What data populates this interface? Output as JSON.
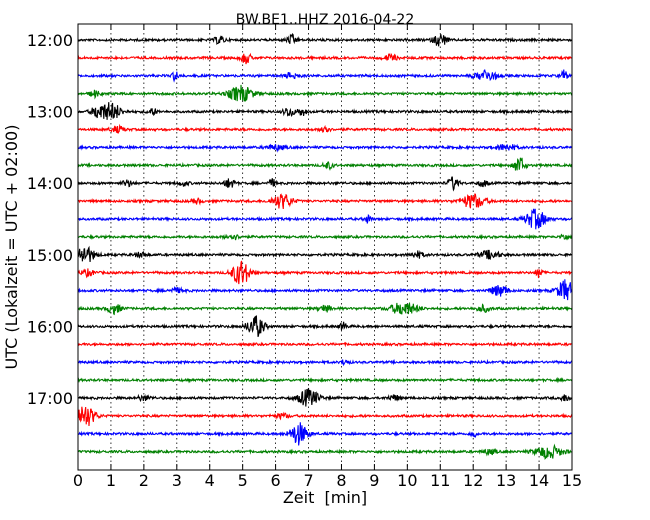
{
  "chart_data": {
    "type": "line",
    "title": "BW.BE1..HHZ 2016-04-22",
    "xlabel": "Zeit  [min]",
    "ylabel": "UTC (Lokalzeit = UTC + 02:00)",
    "xlim": [
      0,
      15
    ],
    "x_ticks": [
      "0",
      "1",
      "2",
      "3",
      "4",
      "5",
      "6",
      "7",
      "8",
      "9",
      "10",
      "11",
      "12",
      "13",
      "14",
      "15"
    ],
    "y_tick_labels": [
      "12:00",
      "13:00",
      "14:00",
      "15:00",
      "16:00",
      "17:00"
    ],
    "trace_minutes": 15,
    "trace_colors": [
      "#000000",
      "#ff0000",
      "#0000ff",
      "#008000"
    ],
    "grid": "vertical dotted lines at every minute",
    "traces": [
      {
        "start": "12:00",
        "events": [
          [
            11,
            0.8,
            0.2
          ],
          [
            6.5,
            0.6,
            0.15
          ],
          [
            4.3,
            0.5,
            0.15
          ]
        ]
      },
      {
        "start": "12:15",
        "events": [
          [
            5.1,
            0.7,
            0.15
          ],
          [
            9.5,
            0.4,
            0.2
          ]
        ]
      },
      {
        "start": "12:30",
        "events": [
          [
            2.95,
            0.6,
            0.1
          ],
          [
            12.4,
            0.7,
            0.3
          ],
          [
            14.75,
            0.7,
            0.1
          ],
          [
            6.5,
            0.4,
            0.2
          ]
        ]
      },
      {
        "start": "12:45",
        "events": [
          [
            4.95,
            1.0,
            0.35
          ],
          [
            0.5,
            0.4,
            0.15
          ]
        ]
      },
      {
        "start": "13:00",
        "events": [
          [
            1.0,
            1.1,
            0.3
          ],
          [
            0.6,
            0.7,
            0.2
          ],
          [
            2.25,
            0.4,
            0.15
          ],
          [
            6.4,
            0.6,
            0.15
          ],
          [
            6.8,
            0.5,
            0.15
          ]
        ]
      },
      {
        "start": "13:15",
        "events": [
          [
            7.5,
            0.8,
            0.1
          ],
          [
            1.2,
            0.4,
            0.2
          ]
        ]
      },
      {
        "start": "13:30",
        "events": [
          [
            13.0,
            0.4,
            0.3
          ],
          [
            6.0,
            0.3,
            0.3
          ]
        ]
      },
      {
        "start": "13:45",
        "events": [
          [
            13.4,
            1.1,
            0.15
          ],
          [
            7.6,
            0.4,
            0.15
          ]
        ]
      },
      {
        "start": "14:00",
        "events": [
          [
            1.5,
            0.4,
            0.15
          ],
          [
            4.6,
            0.6,
            0.15
          ],
          [
            5.9,
            0.5,
            0.1
          ],
          [
            11.4,
            0.8,
            0.15
          ],
          [
            12.3,
            0.4,
            0.15
          ],
          [
            3.2,
            0.3,
            0.15
          ]
        ]
      },
      {
        "start": "14:15",
        "events": [
          [
            6.2,
            0.9,
            0.3
          ],
          [
            12.0,
            0.9,
            0.35
          ],
          [
            3.6,
            0.3,
            0.15
          ]
        ]
      },
      {
        "start": "14:30",
        "events": [
          [
            13.9,
            1.2,
            0.3
          ],
          [
            8.8,
            0.5,
            0.1
          ]
        ]
      },
      {
        "start": "14:45",
        "events": [
          [
            14.75,
            0.4,
            0.1
          ],
          [
            4.7,
            0.3,
            0.2
          ]
        ]
      },
      {
        "start": "15:00",
        "events": [
          [
            0.2,
            1.1,
            0.3
          ],
          [
            12.5,
            0.5,
            0.3
          ],
          [
            10.3,
            0.4,
            0.2
          ],
          [
            1.9,
            0.3,
            0.2
          ]
        ]
      },
      {
        "start": "15:15",
        "events": [
          [
            4.95,
            1.6,
            0.25
          ],
          [
            0.3,
            0.4,
            0.2
          ],
          [
            14.0,
            0.6,
            0.1
          ]
        ]
      },
      {
        "start": "15:30",
        "events": [
          [
            14.8,
            1.3,
            0.25
          ],
          [
            12.8,
            0.7,
            0.25
          ],
          [
            3.0,
            0.3,
            0.2
          ]
        ]
      },
      {
        "start": "15:45",
        "events": [
          [
            9.9,
            0.8,
            0.4
          ],
          [
            1.1,
            0.6,
            0.2
          ],
          [
            7.5,
            0.4,
            0.2
          ],
          [
            12.3,
            0.4,
            0.2
          ]
        ]
      },
      {
        "start": "16:00",
        "events": [
          [
            5.4,
            1.3,
            0.25
          ],
          [
            8.05,
            0.5,
            0.1
          ]
        ]
      },
      {
        "start": "16:15",
        "events": []
      },
      {
        "start": "16:30",
        "events": [
          [
            8.1,
            0.4,
            0.1
          ]
        ]
      },
      {
        "start": "16:45",
        "events": []
      },
      {
        "start": "17:00",
        "events": [
          [
            7.0,
            1.1,
            0.3
          ],
          [
            14.8,
            0.4,
            0.15
          ],
          [
            2.0,
            0.3,
            0.2
          ],
          [
            9.6,
            0.3,
            0.2
          ]
        ]
      },
      {
        "start": "17:15",
        "events": [
          [
            0.2,
            1.4,
            0.3
          ],
          [
            6.2,
            0.3,
            0.2
          ]
        ]
      },
      {
        "start": "17:30",
        "events": [
          [
            6.7,
            1.4,
            0.25
          ],
          [
            12.0,
            0.4,
            0.1
          ]
        ]
      },
      {
        "start": "17:45",
        "events": [
          [
            14.3,
            0.8,
            0.4
          ],
          [
            12.5,
            0.3,
            0.2
          ]
        ]
      }
    ]
  }
}
